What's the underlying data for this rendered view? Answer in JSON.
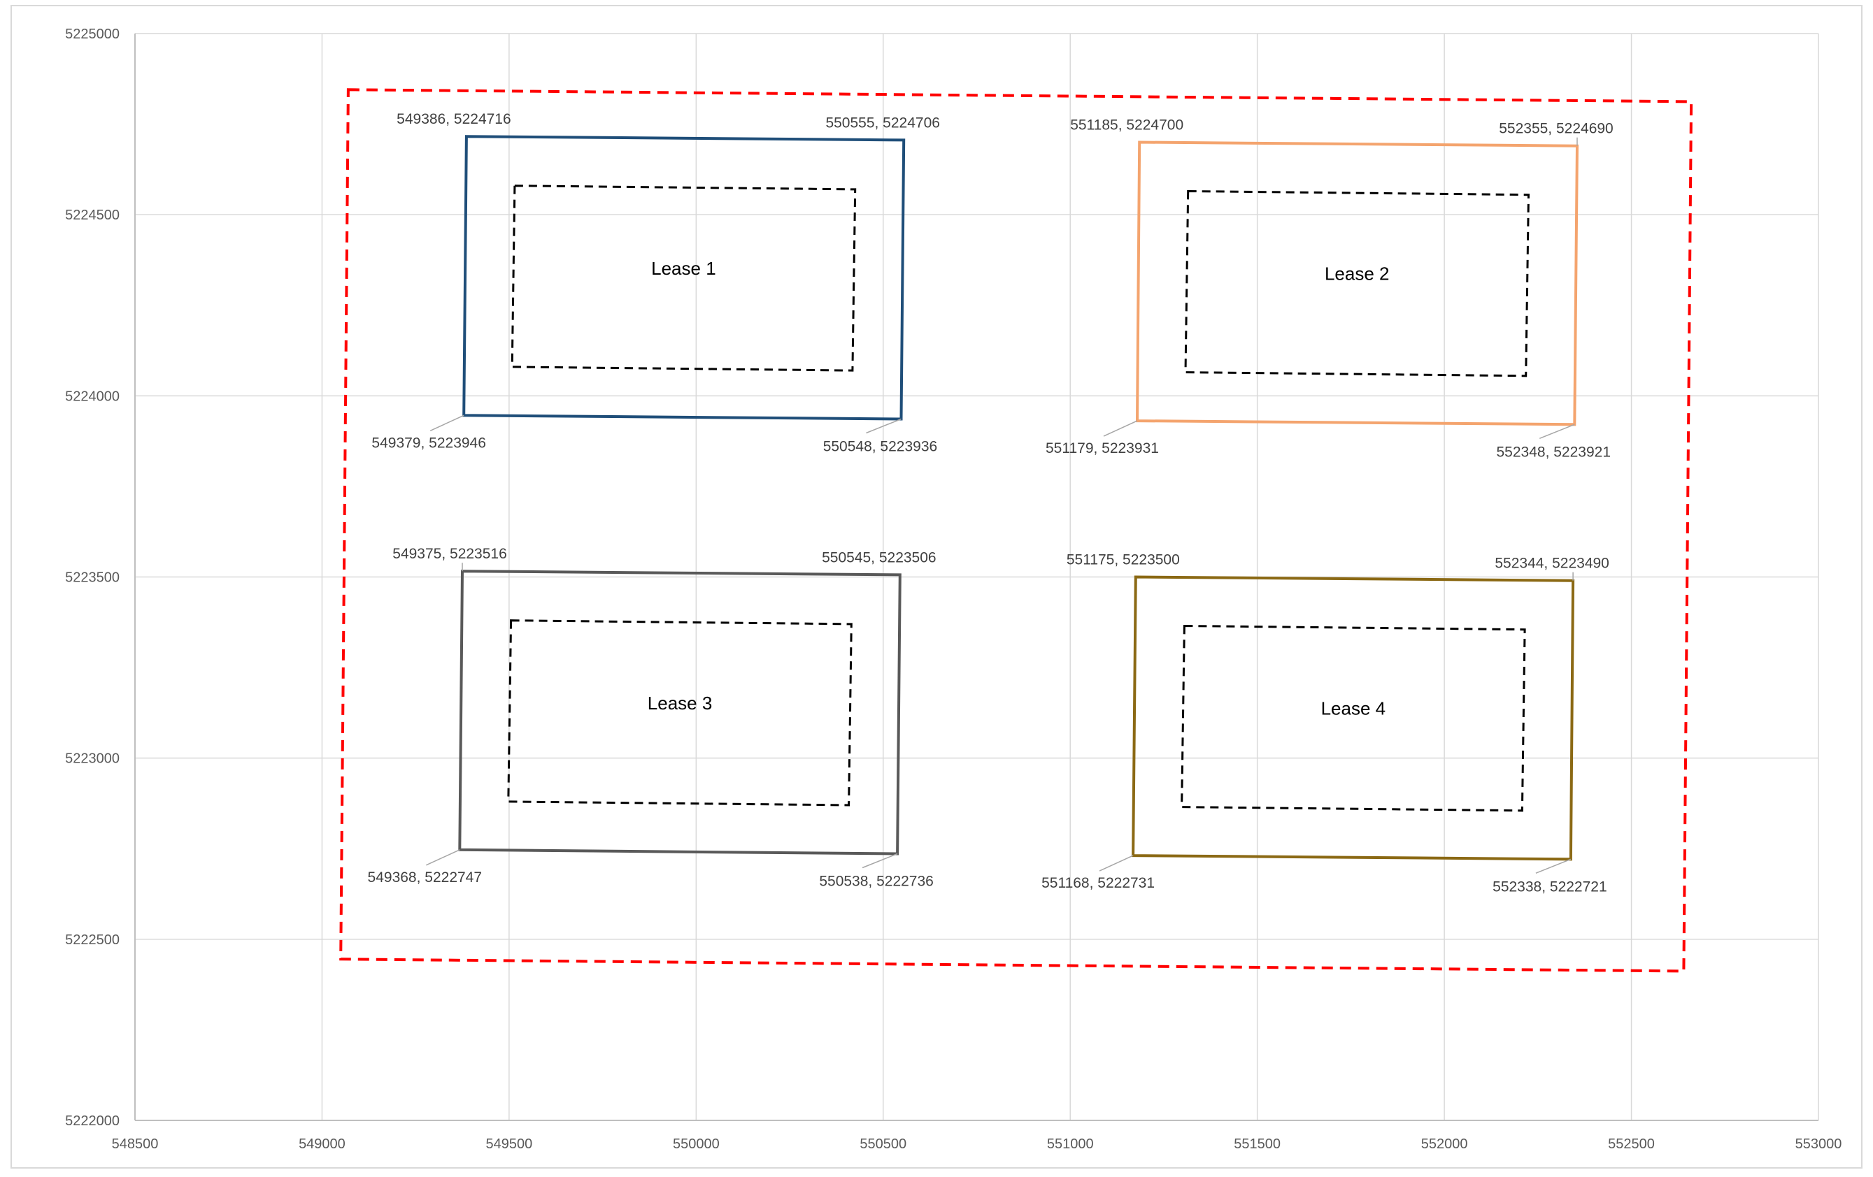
{
  "chart_data": {
    "type": "scatter",
    "title": "",
    "xlabel": "",
    "ylabel": "",
    "xlim": [
      548500,
      553000
    ],
    "ylim": [
      5222000,
      5225000
    ],
    "x_ticks": [
      548500,
      549000,
      549500,
      550000,
      550500,
      551000,
      551500,
      552000,
      552500,
      553000
    ],
    "y_ticks": [
      5222000,
      5222500,
      5223000,
      5223500,
      5224000,
      5224500,
      5225000
    ],
    "x_tick_labels": [
      "548500",
      "549000",
      "549500",
      "550000",
      "550500",
      "551000",
      "551500",
      "552000",
      "552500",
      "553000"
    ],
    "y_tick_labels": [
      "5222000",
      "5222500",
      "5223000",
      "5223500",
      "5224000",
      "5224500",
      "5225000"
    ],
    "grid": true,
    "legend": "none",
    "outer_boundary": {
      "color": "#FF0000",
      "style": "dashed",
      "points": [
        [
          549070,
          5224845
        ],
        [
          552660,
          5224812
        ],
        [
          552640,
          5222412
        ],
        [
          549050,
          5222445
        ]
      ]
    },
    "leases": [
      {
        "name": "Lease 1",
        "color": "#1F4E79",
        "corners": [
          [
            549386,
            5224716
          ],
          [
            550555,
            5224706
          ],
          [
            550548,
            5223936
          ],
          [
            549379,
            5223946
          ]
        ],
        "corner_labels": [
          "549386, 5224716",
          "550555, 5224706",
          "550548, 5223936",
          "549379, 5223946"
        ],
        "inner": [
          [
            549515,
            5224580
          ],
          [
            550425,
            5224570
          ],
          [
            550418,
            5224070
          ],
          [
            549508,
            5224080
          ]
        ]
      },
      {
        "name": "Lease 2",
        "color": "#F4A46E",
        "corners": [
          [
            551185,
            5224700
          ],
          [
            552355,
            5224690
          ],
          [
            552348,
            5223921
          ],
          [
            551179,
            5223931
          ]
        ],
        "corner_labels": [
          "551185, 5224700",
          "552355, 5224690",
          "552348, 5223921",
          "551179, 5223931"
        ],
        "inner": [
          [
            551315,
            5224565
          ],
          [
            552225,
            5224555
          ],
          [
            552218,
            5224055
          ],
          [
            551308,
            5224065
          ]
        ]
      },
      {
        "name": "Lease 3",
        "color": "#595959",
        "corners": [
          [
            549375,
            5223516
          ],
          [
            550545,
            5223506
          ],
          [
            550538,
            5222736
          ],
          [
            549368,
            5222747
          ]
        ],
        "corner_labels": [
          "549375, 5223516",
          "550545, 5223506",
          "550538, 5222736",
          "549368, 5222747"
        ],
        "inner": [
          [
            549505,
            5223380
          ],
          [
            550415,
            5223370
          ],
          [
            550408,
            5222870
          ],
          [
            549498,
            5222880
          ]
        ]
      },
      {
        "name": "Lease 4",
        "color": "#8B6914",
        "corners": [
          [
            551175,
            5223500
          ],
          [
            552344,
            5223490
          ],
          [
            552338,
            5222721
          ],
          [
            551168,
            5222731
          ]
        ],
        "corner_labels": [
          "551175, 5223500",
          "552344, 5223490",
          "552338, 5222721",
          "551168, 5222731"
        ],
        "inner": [
          [
            551305,
            5223365
          ],
          [
            552215,
            5223355
          ],
          [
            552208,
            5222855
          ],
          [
            551298,
            5222865
          ]
        ]
      }
    ]
  }
}
